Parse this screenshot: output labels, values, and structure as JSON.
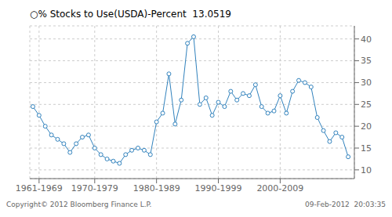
{
  "chart_data": {
    "type": "line",
    "title": "○% Stocks to Use(USDA)-Percent  13.0519",
    "annotations": [
      "Copyright© 2012 Bloomberg Finance L.P.",
      "09-Feb-2012  20:03:35"
    ],
    "x": [
      1960,
      1961,
      1962,
      1963,
      1964,
      1965,
      1966,
      1967,
      1968,
      1969,
      1970,
      1971,
      1972,
      1973,
      1974,
      1975,
      1976,
      1977,
      1978,
      1979,
      1980,
      1981,
      1982,
      1983,
      1984,
      1985,
      1986,
      1987,
      1988,
      1989,
      1990,
      1991,
      1992,
      1993,
      1994,
      1995,
      1996,
      1997,
      1998,
      1999,
      2000,
      2001,
      2002,
      2003,
      2004,
      2005,
      2006,
      2007,
      2008,
      2009,
      2010,
      2011
    ],
    "values": [
      24.5,
      22.5,
      20.0,
      18.0,
      17.0,
      16.0,
      14.0,
      16.0,
      17.5,
      18.0,
      15.0,
      13.5,
      12.5,
      12.0,
      11.5,
      13.5,
      14.5,
      15.0,
      14.5,
      13.5,
      21.0,
      23.0,
      32.0,
      20.5,
      26.0,
      39.0,
      40.5,
      25.0,
      26.5,
      22.5,
      25.5,
      24.5,
      28.0,
      26.0,
      27.5,
      27.0,
      29.5,
      24.5,
      23.0,
      23.5,
      27.0,
      23.0,
      28.0,
      30.5,
      30.0,
      29.0,
      22.0,
      19.0,
      16.5,
      18.5,
      17.5,
      13.0
    ],
    "xlim": [
      1959.5,
      2012
    ],
    "xticks": [
      {
        "value": 1961,
        "label": "1961-1969"
      },
      {
        "value": 1970,
        "label": "1970-1979"
      },
      {
        "value": 1980,
        "label": "1980-1989"
      },
      {
        "value": 1990,
        "label": "1990-1999"
      },
      {
        "value": 2000,
        "label": "2000-2009"
      }
    ],
    "ylim": [
      8,
      43
    ],
    "yticks": [
      10,
      15,
      20,
      25,
      30,
      35,
      40
    ],
    "grid": true,
    "marker": "circle"
  }
}
